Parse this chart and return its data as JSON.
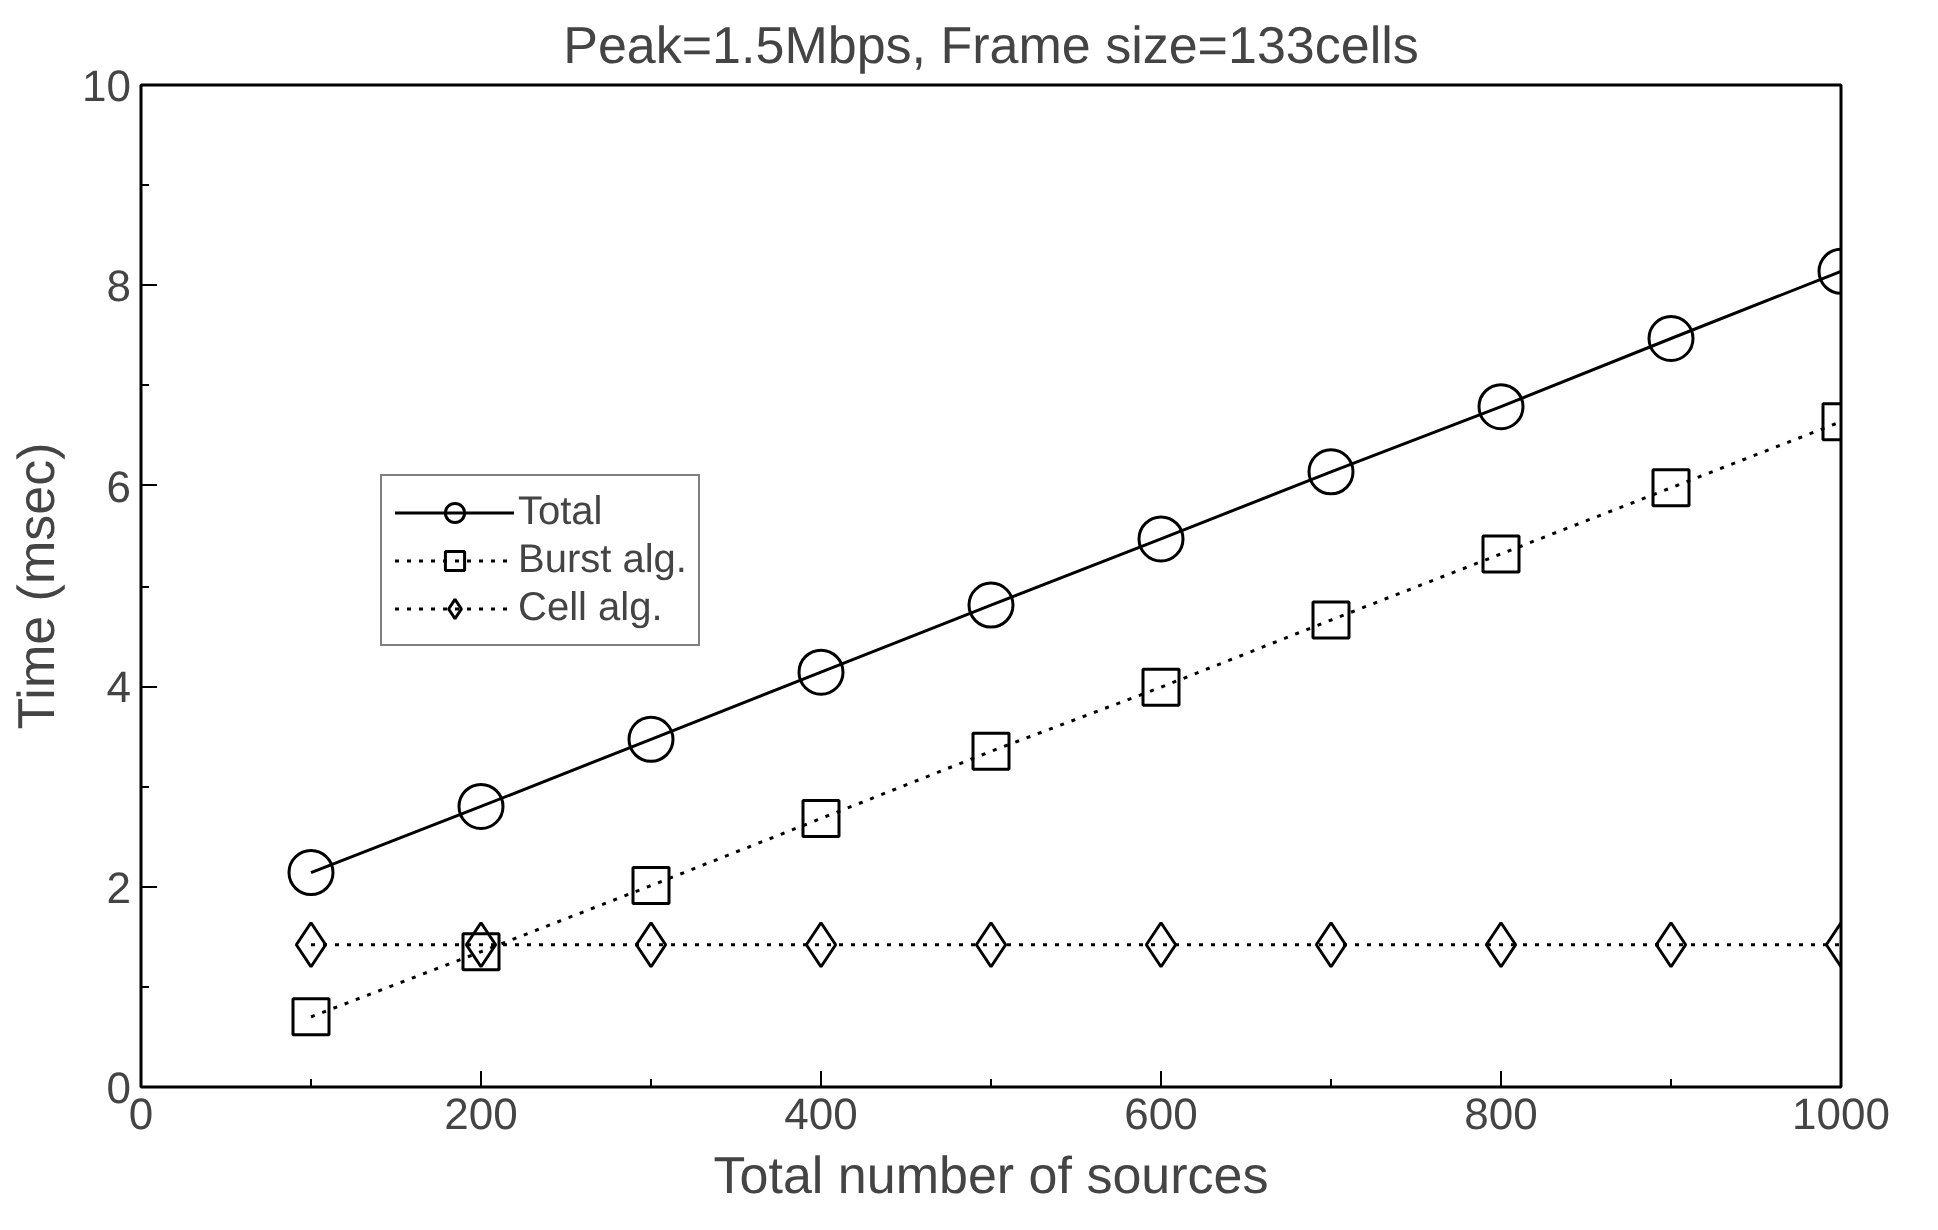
{
  "chart_data": {
    "type": "line",
    "title": "Peak=1.5Mbps, Frame size=133cells",
    "xlabel": "Total number of sources",
    "ylabel": "Time (msec)",
    "x": [
      100,
      200,
      300,
      400,
      500,
      600,
      700,
      800,
      900,
      1000
    ],
    "series": [
      {
        "name": "Total",
        "color": "#000000",
        "marker": "circle",
        "line_style": "solid",
        "values": [
          2.14,
          2.8,
          3.47,
          4.14,
          4.81,
          5.47,
          6.14,
          6.79,
          7.47,
          8.14
        ]
      },
      {
        "name": "Burst alg.",
        "color": "#000000",
        "marker": "square",
        "line_style": "dotted",
        "values": [
          0.7,
          1.35,
          2.01,
          2.68,
          3.35,
          3.99,
          4.66,
          5.32,
          5.98,
          6.64
        ]
      },
      {
        "name": "Cell alg.",
        "color": "#000000",
        "marker": "diamond",
        "line_style": "dotted",
        "values": [
          1.42,
          1.42,
          1.42,
          1.42,
          1.42,
          1.42,
          1.42,
          1.42,
          1.42,
          1.42
        ]
      }
    ],
    "xlim": [
      0,
      1000
    ],
    "ylim": [
      0,
      10
    ],
    "xticks": [
      0,
      200,
      400,
      600,
      800,
      1000
    ],
    "yticks": [
      0,
      2,
      4,
      6,
      8,
      10
    ],
    "grid": false,
    "legend": "top left"
  }
}
